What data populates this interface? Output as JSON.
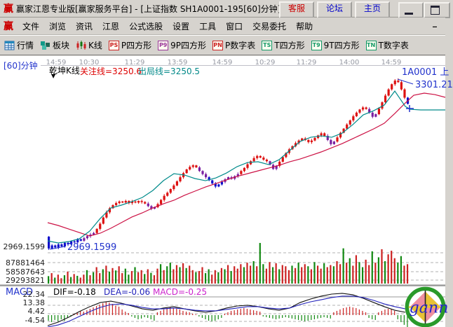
{
  "window": {
    "title": "赢家江恩专业版[赢家服务平台] - [上证指数  SH1A0001-195[60]分钟]",
    "logo_glyph": "赢",
    "titlebar_buttons": [
      {
        "label": "客服",
        "color": "#cc0000"
      },
      {
        "label": "论坛",
        "color": "#0000cc"
      },
      {
        "label": "主页",
        "color": "#0000cc"
      }
    ]
  },
  "menu": {
    "items": [
      "文件",
      "浏览",
      "资讯",
      "江恩",
      "公式选股",
      "设置",
      "工具",
      "窗口",
      "交易委托",
      "帮助"
    ],
    "minimize_glyph": "_"
  },
  "toolbar": {
    "items": [
      {
        "icon": "quote-grid",
        "label": "行情",
        "color": "#2266aa"
      },
      {
        "icon": "blocks",
        "label": "板块",
        "color": "#119988"
      },
      {
        "icon": "candles",
        "label": "K线",
        "color": "#cc2222"
      },
      {
        "icon": "PS",
        "label": "P四方形",
        "color": "#cc2222"
      },
      {
        "icon": "P9",
        "label": "9P四方形",
        "color": "#993399"
      },
      {
        "icon": "PN",
        "label": "P数字表",
        "color": "#cc2222"
      },
      {
        "icon": "TS",
        "label": "T四方形",
        "color": "#119966"
      },
      {
        "icon": "T9",
        "label": "9T四方形",
        "color": "#119966"
      },
      {
        "icon": "TN",
        "label": "T数字表",
        "color": "#119966"
      }
    ]
  },
  "chart_header": {
    "period": "[60]分钟",
    "kline_name": "乾坤K线",
    "dropdown_glyph": "▼",
    "attention_line": "关注线=3250.6",
    "exit_line": "出局线=3250.5",
    "symbol_right": "1A0001 上"
  },
  "macd_header": {
    "indicator": "MACD",
    "dif": "DIF=-0.18",
    "dea": "DEA=-0.06",
    "macd": "MACD=-0.25"
  },
  "watermark": {
    "text": "gann"
  },
  "colors": {
    "up": "#dd1111",
    "down": "#1111cc",
    "neutral": "#7a1fa0",
    "ma_fast": "#008b8b",
    "ma_slow": "#cc1144",
    "vol_up": "#cc2222",
    "vol_down": "#118811",
    "dif": "#111111",
    "dea": "#2222bb",
    "macd_value": "#cc22cc",
    "annotation_blue": "#2233cc",
    "attention_red": "#dd0000",
    "exit_teal": "#008888",
    "grid": "#b0b0b0"
  },
  "chart_data": {
    "type": "candlestick",
    "title": "上证指数 SH1A0001 [60]分钟 乾坤K线",
    "x_labels": [
      "14:59",
      "10:30",
      "11:29",
      "13:59",
      "14:59",
      "10:29",
      "11:29",
      "14:00",
      "14:59"
    ],
    "price_axis": {
      "low": 2969.1599,
      "high": 3301.21,
      "low_label": "2969.1599"
    },
    "annotations": {
      "low_text": "2969.1599",
      "peak_text": "3301.21"
    },
    "key_lines": {
      "attention": 3250.6,
      "exit": 3250.5
    },
    "candles": {
      "first_open": 2995,
      "closes": [
        2972,
        2978,
        2974,
        2980,
        2976,
        2983,
        2980,
        2986,
        2984,
        2990,
        2987,
        2992,
        2996,
        2999,
        3002,
        3010,
        3020,
        3032,
        3042,
        3050,
        3056,
        3060,
        3063,
        3061,
        3064,
        3060,
        3063,
        3061,
        3064,
        3062,
        3059,
        3054,
        3049,
        3052,
        3058,
        3066,
        3074,
        3080,
        3087,
        3094,
        3102,
        3110,
        3118,
        3125,
        3130,
        3133,
        3129,
        3122,
        3116,
        3110,
        3104,
        3098,
        3092,
        3096,
        3101,
        3106,
        3110,
        3107,
        3112,
        3116,
        3122,
        3128,
        3135,
        3141,
        3147,
        3151,
        3148,
        3144,
        3141,
        3134,
        3126,
        3132,
        3140,
        3149,
        3157,
        3164,
        3170,
        3176,
        3181,
        3185,
        3182,
        3178,
        3181,
        3186,
        3191,
        3195,
        3190,
        3182,
        3174,
        3179,
        3187,
        3196,
        3204,
        3212,
        3220,
        3228,
        3235,
        3241,
        3245,
        3242,
        3235,
        3227,
        3232,
        3243,
        3255,
        3268,
        3280,
        3290,
        3297,
        3294,
        3280,
        3264,
        3252
      ],
      "colors": "bbbbbbbbbbbpppprrrrrrrrrrrrrrrrppprrrrrrrrrrrrrpppbbbbbppppprrrrrrrrrppprrrrrrrrrrrrrrrppprrrrrrrrrrppprrrrrrrrrb",
      "low_override": {
        "index": 0,
        "value": 2969.1599
      },
      "high_override": {
        "index": 109,
        "value": 3301.21
      }
    },
    "ma_fast": {
      "prices": [
        2986.8,
        2982.7,
        2985.4,
        2990.8,
        3005.8,
        3030.2,
        3050.5,
        3055.9,
        3062.7,
        3070.8,
        3084.4,
        3103.3,
        3116.9,
        3114.2,
        3107.4,
        3103.3,
        3108.7,
        3118.2,
        3130.4,
        3138.5,
        3139.9,
        3134.5,
        3143.9,
        3161.6,
        3179.2,
        3187.3,
        3190.0,
        3187.3,
        3195.4,
        3211.7,
        3230.7,
        3238.8,
        3249.6,
        3276.7,
        3246.9
      ],
      "ext_x": [
        585,
        600,
        635
      ],
      "ext_prices": [
        3241.5,
        3240.2,
        3240.2
      ]
    },
    "ma_slow": {
      "prices": [
        3022.0,
        3016.6,
        3009.8,
        3003.0,
        2996.3,
        3001.7,
        3011.2,
        3022.0,
        3032.9,
        3041.0,
        3050.5,
        3058.6,
        3065.4,
        3074.9,
        3083.0,
        3091.1,
        3097.9,
        3104.7,
        3111.5,
        3116.9,
        3122.3,
        3127.7,
        3133.1,
        3139.9,
        3145.3,
        3152.1,
        3158.9,
        3167.0,
        3175.1,
        3184.6,
        3194.1,
        3203.6,
        3214.4,
        3233.4,
        3253.7
      ],
      "ext_x": [
        590,
        605,
        620,
        635
      ],
      "ext_prices": [
        3268.6,
        3272.7,
        3270.0,
        3264.6
      ]
    },
    "volume": {
      "axis_labels": [
        "87881464",
        "58587643",
        "29293821"
      ],
      "unit_per_gridline": 29293821,
      "millions": [
        25,
        35,
        20,
        30,
        18,
        28,
        40,
        22,
        32,
        26,
        20,
        30,
        45,
        28,
        38,
        55,
        35,
        48,
        60,
        40,
        52,
        44,
        58,
        35,
        50,
        30,
        42,
        55,
        38,
        45,
        32,
        48,
        36,
        28,
        50,
        65,
        45,
        58,
        70,
        48,
        62,
        55,
        68,
        52,
        60,
        45,
        38,
        42,
        55,
        35,
        48,
        30,
        45,
        38,
        52,
        48,
        62,
        42,
        58,
        50,
        65,
        55,
        70,
        60,
        75,
        58,
        136,
        65,
        50,
        72,
        55,
        68,
        48,
        62,
        58,
        45,
        60,
        52,
        70,
        55,
        65,
        58,
        48,
        72,
        60,
        50,
        68,
        55,
        62,
        58,
        75,
        65,
        118,
        70,
        85,
        60,
        95,
        72,
        55,
        80,
        62,
        108,
        70,
        88,
        115,
        75,
        98,
        110,
        85,
        70,
        92,
        60,
        65
      ],
      "colors": "grgrrgrgrgrrgrgrrgrgrgrrggrgrrgrgrrgrggrrgrgrrgrrggrrgrgrgrrrgrrgrggrrgrgrrrgrgrrgrgrrgrrgrrgrgrrggrrgrgrgrrrggr"
    },
    "macd": {
      "axis_labels": [
        "22.34",
        "13.38",
        "4.42",
        "-4.54"
      ],
      "dif": [
        -11.2,
        -7.5,
        -2.2,
        3.7,
        9,
        13.4,
        14.9,
        12.7,
        9.7,
        6.7,
        5.2,
        7.5,
        9,
        6.7,
        4.5,
        3,
        4.5,
        7.5,
        9.7,
        10.5,
        9,
        6.7,
        5.2,
        7.5,
        13.4,
        17.2,
        20.2,
        22.4,
        23.2,
        21.7,
        17.9,
        13.4,
        9,
        5.2,
        3
      ],
      "dea": [
        -12.7,
        -10.5,
        -6.7,
        -1.5,
        3.7,
        8.2,
        11.2,
        11.9,
        10.5,
        8.2,
        6.7,
        6.7,
        7.5,
        6.7,
        5.2,
        4.5,
        4.5,
        6,
        7.5,
        9,
        9,
        7.5,
        6.7,
        7.5,
        11.2,
        14.2,
        16.4,
        18.7,
        20.2,
        20.2,
        18.7,
        15.7,
        11.9,
        9,
        6.7
      ],
      "hist": [
        -6,
        -7.5,
        -5.2,
        -6.7,
        -4.5,
        -6,
        -3,
        -1.5,
        1.5,
        3,
        4.5,
        3.7,
        5.2,
        6.7,
        8.2,
        9.7,
        11.2,
        12.7,
        14.2,
        13.4,
        11.9,
        10.4,
        9,
        6,
        3.7,
        2.2,
        -1.5,
        -3,
        -4.5,
        -3.7,
        -2.2,
        -3,
        -4.5,
        -6,
        3,
        4.5,
        6,
        7.5,
        8.2,
        7.5,
        6.7,
        6,
        4.5,
        3.7,
        3,
        1.5,
        0.7,
        -1.5,
        -3,
        -4.5,
        -6,
        -6.7,
        -6,
        -4.5,
        -3,
        1.5,
        3,
        4.5,
        5.2,
        6,
        6.7,
        7.5,
        6.7,
        6,
        5.2,
        4.5,
        3.7,
        -1.5,
        -2.2,
        -3,
        -3.7,
        -4.5,
        -3.7,
        -3,
        -2.2,
        -3,
        -3.7,
        -4.5,
        -5.2,
        -6,
        -6.7,
        -6,
        -5.2,
        -4.5,
        -3.7,
        -3,
        -2.2,
        -3,
        -3.7,
        3,
        4.5,
        6,
        7.5,
        8.2,
        9,
        8.2,
        7.5,
        6,
        4.5,
        3,
        -3,
        -4.5,
        -5.2,
        3,
        4.5,
        6,
        6.7,
        6,
        4.5,
        -4.5,
        -7.5,
        -10.4,
        -12.7
      ]
    },
    "price_axis_label_value": "2969.1599"
  }
}
